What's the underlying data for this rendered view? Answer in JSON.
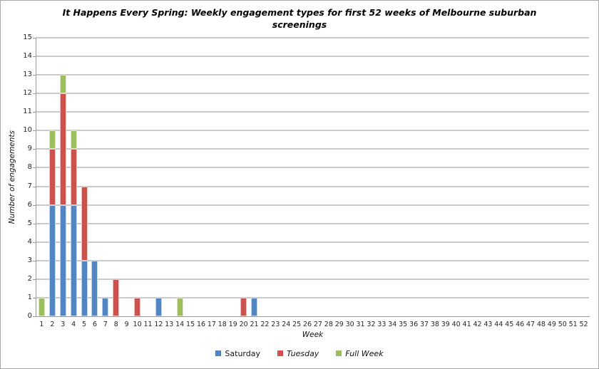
{
  "chart_data": {
    "type": "bar",
    "stacked": true,
    "title": "It Happens Every Spring: Weekly engagement types for first 52 weeks of Melbourne suburban screenings",
    "xlabel": "Week",
    "ylabel": "Number of engagements",
    "ylim": [
      0,
      15
    ],
    "ytick_step": 1,
    "grid": true,
    "legend_position": "bottom",
    "categories": [
      "1",
      "2",
      "3",
      "4",
      "5",
      "6",
      "7",
      "8",
      "9",
      "10",
      "11",
      "12",
      "13",
      "14",
      "15",
      "16",
      "17",
      "18",
      "19",
      "20",
      "21",
      "22",
      "23",
      "24",
      "25",
      "26",
      "27",
      "28",
      "29",
      "30",
      "31",
      "32",
      "33",
      "34",
      "35",
      "36",
      "37",
      "38",
      "39",
      "40",
      "41",
      "42",
      "43",
      "44",
      "45",
      "46",
      "47",
      "48",
      "49",
      "50",
      "51",
      "52"
    ],
    "series": [
      {
        "name": "Saturday",
        "color": "#5285C4",
        "label_style": "normal",
        "values": [
          0,
          6,
          6,
          6,
          3,
          3,
          1,
          0,
          0,
          0,
          0,
          1,
          0,
          0,
          0,
          0,
          0,
          0,
          0,
          0,
          1,
          0,
          0,
          0,
          0,
          0,
          0,
          0,
          0,
          0,
          0,
          0,
          0,
          0,
          0,
          0,
          0,
          0,
          0,
          0,
          0,
          0,
          0,
          0,
          0,
          0,
          0,
          0,
          0,
          0,
          0,
          0
        ]
      },
      {
        "name": "Tuesday",
        "color": "#CD524E",
        "label_style": "italic",
        "values": [
          0,
          3,
          6,
          3,
          4,
          0,
          0,
          2,
          0,
          1,
          0,
          0,
          0,
          0,
          0,
          0,
          0,
          0,
          0,
          1,
          0,
          0,
          0,
          0,
          0,
          0,
          0,
          0,
          0,
          0,
          0,
          0,
          0,
          0,
          0,
          0,
          0,
          0,
          0,
          0,
          0,
          0,
          0,
          0,
          0,
          0,
          0,
          0,
          0,
          0,
          0,
          0
        ]
      },
      {
        "name": "Full Week",
        "color": "#9CBE5D",
        "label_style": "italic",
        "values": [
          1,
          1,
          1,
          1,
          0,
          0,
          0,
          0,
          0,
          0,
          0,
          0,
          0,
          1,
          0,
          0,
          0,
          0,
          0,
          0,
          0,
          0,
          0,
          0,
          0,
          0,
          0,
          0,
          0,
          0,
          0,
          0,
          0,
          0,
          0,
          0,
          0,
          0,
          0,
          0,
          0,
          0,
          0,
          0,
          0,
          0,
          0,
          0,
          0,
          0,
          0,
          0
        ]
      }
    ]
  }
}
